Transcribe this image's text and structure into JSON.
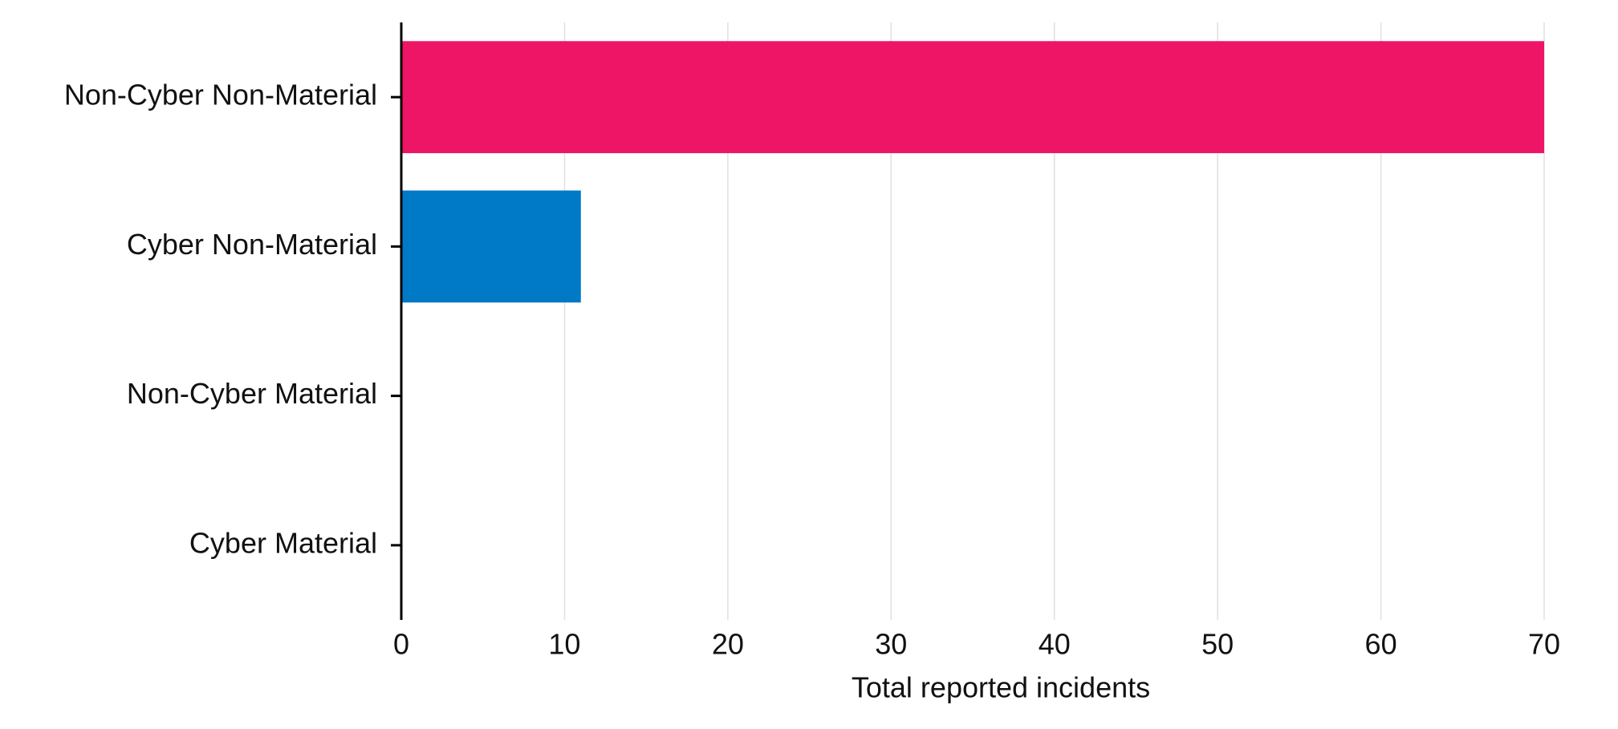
{
  "chart_data": {
    "type": "barh",
    "categories": [
      "Non-Cyber Non-Material",
      "Cyber Non-Material",
      "Non-Cyber Material",
      "Cyber Material"
    ],
    "values": [
      70,
      11,
      0,
      0
    ],
    "colors": [
      "#ee1566",
      "#0079c7"
    ],
    "xlabel": "Total reported incidents",
    "xlim": [
      0,
      70
    ],
    "xticks": [
      0,
      10,
      20,
      30,
      40,
      50,
      60,
      70
    ],
    "grid": true
  }
}
